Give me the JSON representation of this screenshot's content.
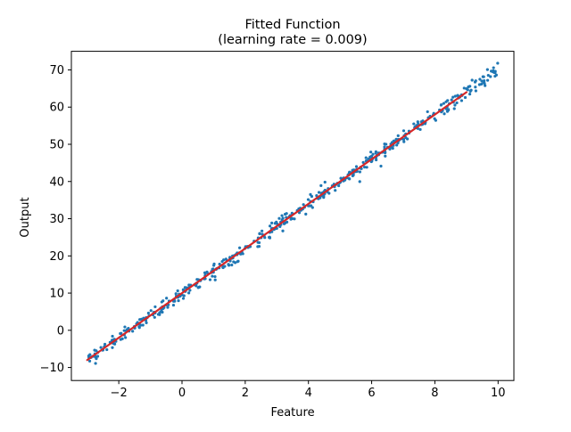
{
  "chart_data": {
    "type": "scatter",
    "title_line1": "Fitted Function",
    "title_line2": "(learning rate = 0.009)",
    "xlabel": "Feature",
    "ylabel": "Output",
    "xlim": [
      -3.5,
      10.5
    ],
    "ylim": [
      -13.5,
      75
    ],
    "x_ticks": [
      -2,
      0,
      2,
      4,
      6,
      8,
      10
    ],
    "x_tick_labels": [
      "−2",
      "0",
      "2",
      "4",
      "6",
      "8",
      "10"
    ],
    "y_ticks": [
      -10,
      0,
      10,
      20,
      30,
      40,
      50,
      60,
      70
    ],
    "y_tick_labels": [
      "−10",
      "0",
      "10",
      "20",
      "30",
      "40",
      "50",
      "60",
      "70"
    ],
    "grid": false,
    "legend": "none",
    "scatter": {
      "x_range": [
        -3,
        10
      ],
      "point_count": 500,
      "trend_slope": 6,
      "trend_intercept": 10,
      "noise_std": 0.9,
      "color": "#1f77b4"
    },
    "fitted_line": {
      "x": [
        -3,
        9
      ],
      "y": [
        -8,
        64
      ],
      "color": "#d62728"
    }
  }
}
